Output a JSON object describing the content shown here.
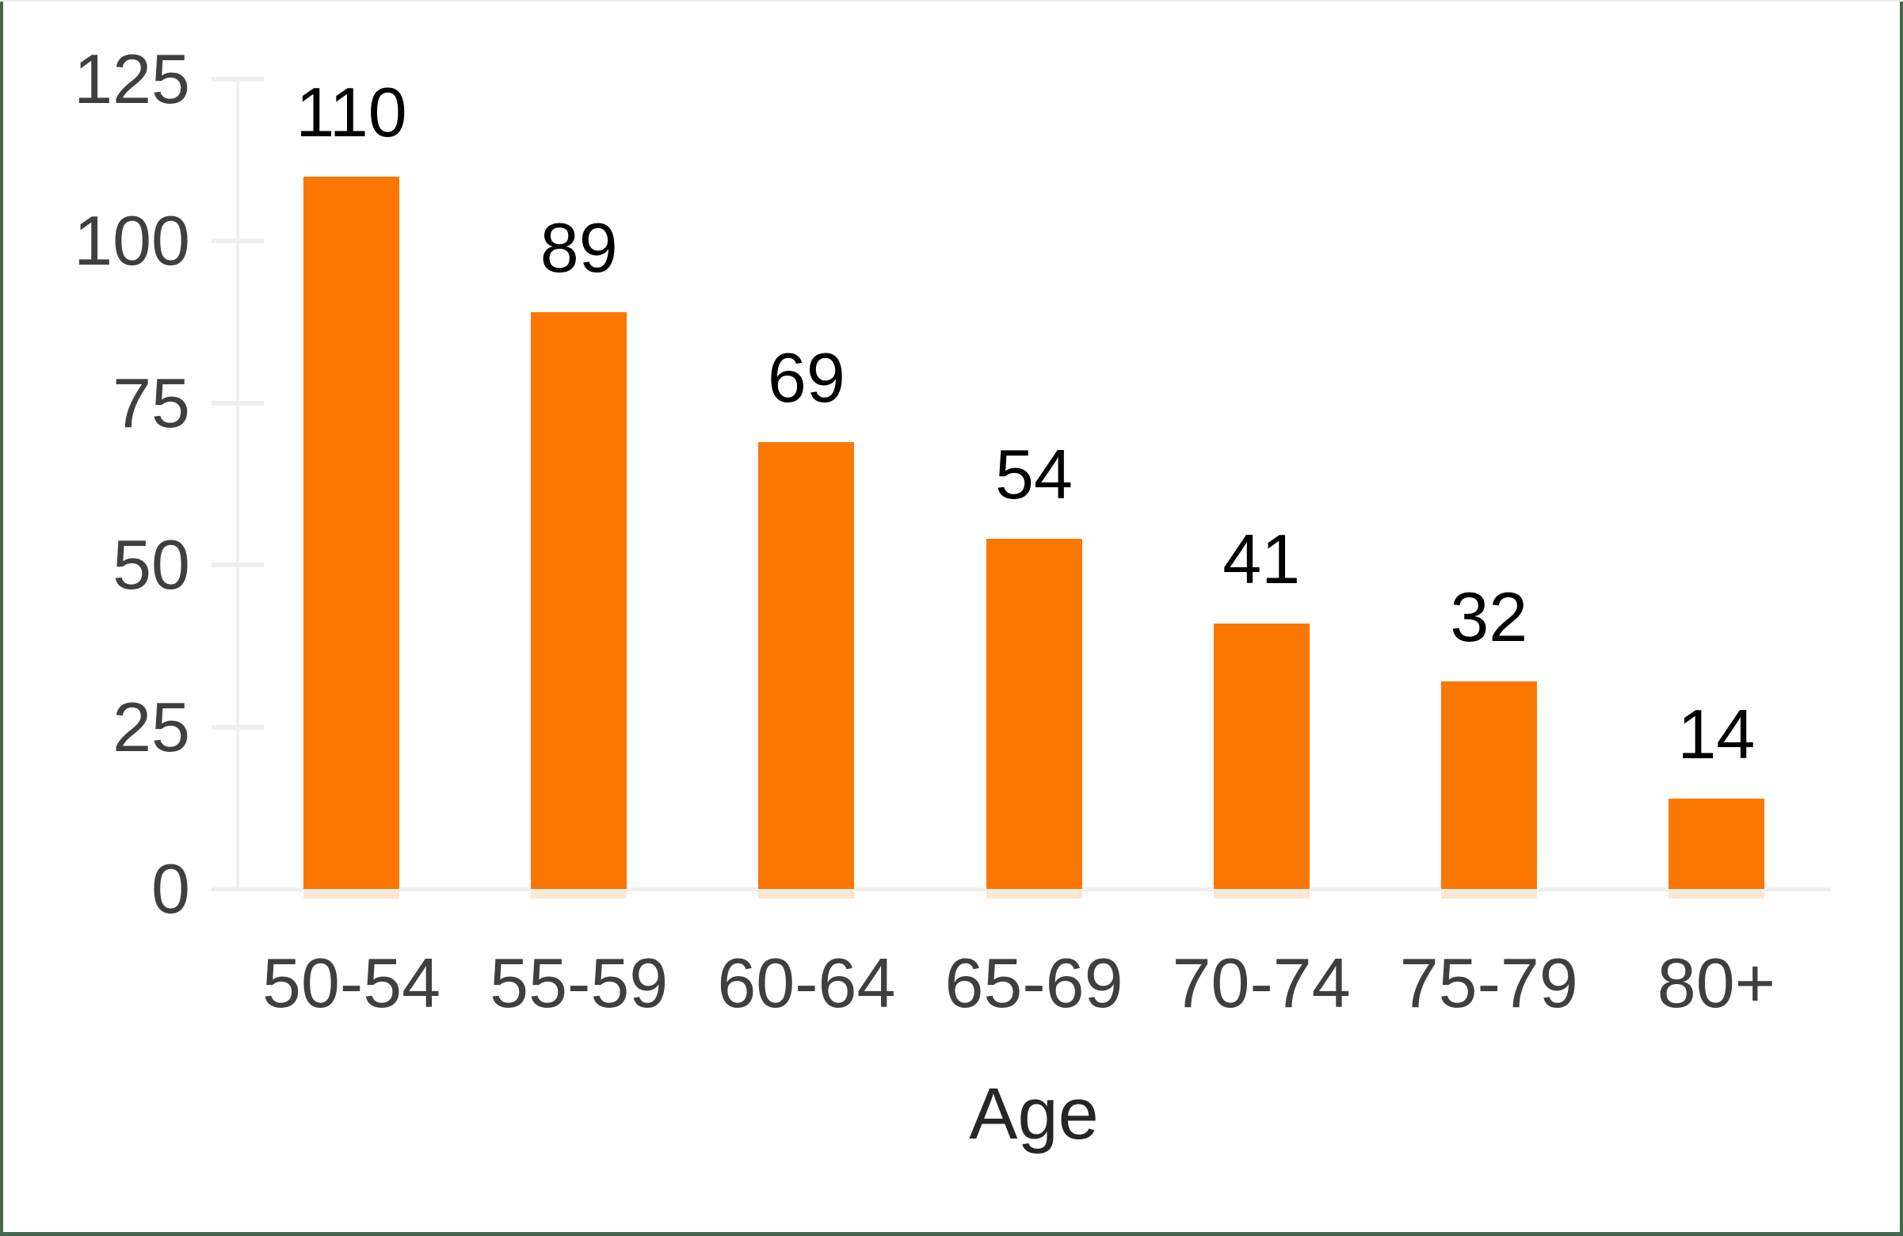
{
  "chart_data": {
    "type": "bar",
    "categories": [
      "50-54",
      "55-59",
      "60-64",
      "65-69",
      "70-74",
      "75-79",
      "80+"
    ],
    "values": [
      110,
      89,
      69,
      54,
      41,
      32,
      14
    ],
    "data_labels": [
      "110",
      "89",
      "69",
      "54",
      "41",
      "32",
      "14"
    ],
    "title": "",
    "xlabel": "Age",
    "ylabel": "",
    "ytick_labels": [
      "0",
      "25",
      "50",
      "75",
      "100",
      "125"
    ],
    "yticks": [
      0,
      25,
      50,
      75,
      100,
      125
    ],
    "ylim": [
      0,
      125
    ],
    "grid": false,
    "legend": false,
    "bar_color": "#FC7702",
    "axis_color": "#EFEFEF",
    "ytick_label_color": "#3F3F3F",
    "category_label_color": "#3F3F3F",
    "data_label_color": "#000000",
    "xlabel_color": "#262626",
    "frame_border_color": "#46664D",
    "top_hairline_color": "#EDEDED",
    "background_color": "#FFFFFF"
  }
}
